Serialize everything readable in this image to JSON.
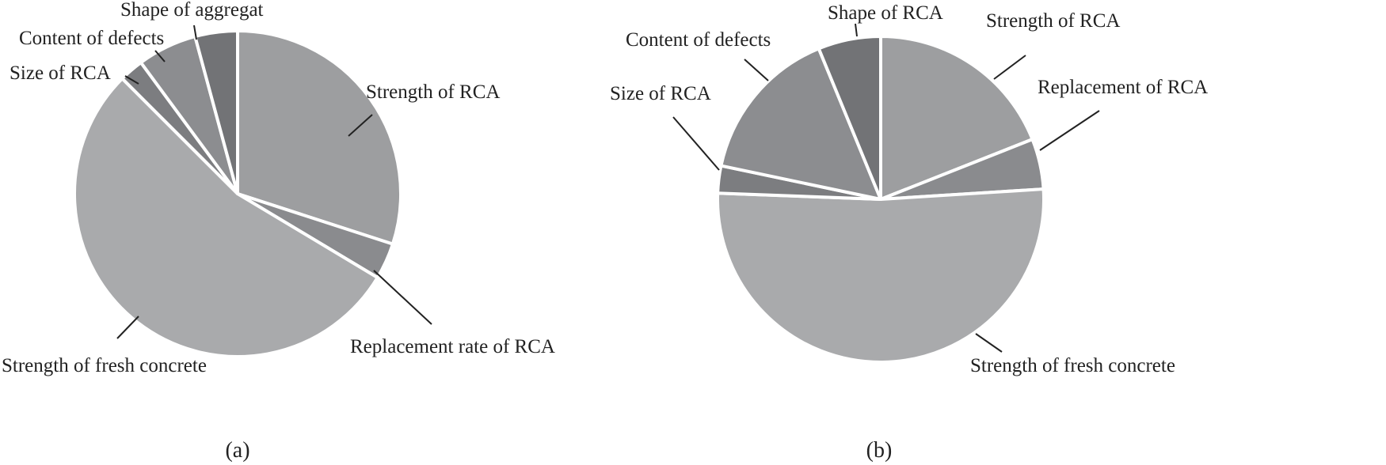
{
  "chart_data": [
    {
      "type": "pie",
      "caption": "(a)",
      "start": "12 o'clock, clockwise",
      "slices": [
        {
          "label": "Strength of RCA",
          "value": 30.0,
          "color": "#9d9ea0"
        },
        {
          "label": "Replacement rate of RCA",
          "value": 3.6,
          "color": "#8a8b8e"
        },
        {
          "label": "Strength of fresh concrete",
          "value": 53.9,
          "color": "#a9aaac"
        },
        {
          "label": "Size of RCA",
          "value": 2.4,
          "color": "#7c7d80"
        },
        {
          "label": "Content of defects",
          "value": 5.9,
          "color": "#8c8d90"
        },
        {
          "label": "Shape of aggregat",
          "value": 4.2,
          "color": "#727376"
        }
      ]
    },
    {
      "type": "pie",
      "caption": "(b)",
      "start": "12 o'clock, clockwise",
      "slices": [
        {
          "label": "Strength of RCA",
          "value": 19.0,
          "color": "#9d9ea0"
        },
        {
          "label": "Replacement of RCA",
          "value": 5.0,
          "color": "#8a8b8e"
        },
        {
          "label": "Strength of fresh concrete",
          "value": 51.6,
          "color": "#a9aaac"
        },
        {
          "label": "Size of RCA",
          "value": 2.7,
          "color": "#7c7d80"
        },
        {
          "label": "Content of defects",
          "value": 15.5,
          "color": "#8c8d90"
        },
        {
          "label": "Shape of RCA",
          "value": 6.2,
          "color": "#727376"
        }
      ]
    }
  ]
}
